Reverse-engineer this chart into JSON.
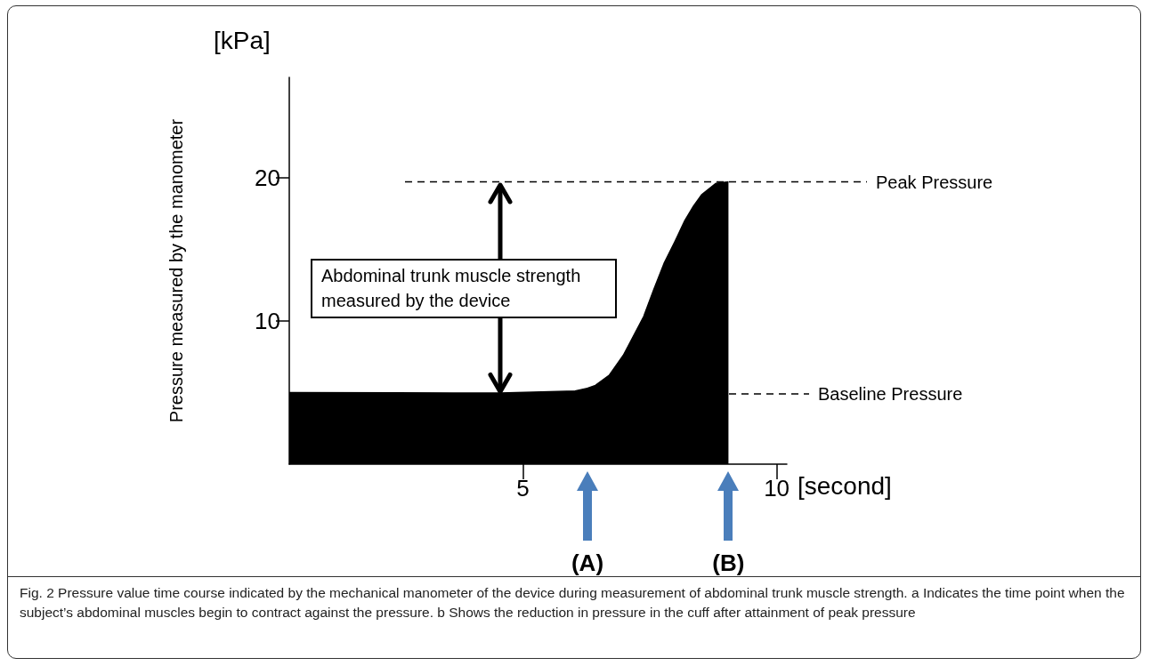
{
  "chart_data": {
    "type": "area",
    "xlabel": "[second]",
    "ylabel": "Pressure measured by the manometer",
    "xlim": [
      0.4,
      10.2
    ],
    "xticks": [
      5,
      10
    ],
    "ylim": [
      0,
      27
    ],
    "yticks": [
      10,
      20
    ],
    "grid": false,
    "marker": "none",
    "series": [
      {
        "color": "#000000",
        "x": [
          0.4,
          2.5,
          4.55,
          6.03,
          6.27,
          6.43,
          6.7,
          6.98,
          7.38,
          7.58,
          7.78,
          7.99,
          8.19,
          8.36,
          8.52,
          8.8,
          9.05
        ],
        "values": [
          5.0,
          4.98,
          4.96,
          5.1,
          5.3,
          5.5,
          6.2,
          7.6,
          10.3,
          12.2,
          14.0,
          15.5,
          17.0,
          18.0,
          18.8,
          19.6,
          19.7
        ]
      }
    ],
    "ref_lines": [
      {
        "axis": "y",
        "value": 19.7,
        "label": "Peak Pressure",
        "line_style": "dashed"
      },
      {
        "axis": "y",
        "value": 4.9,
        "label": "Baseline Pressure",
        "line_style": "dashed"
      }
    ],
    "annotations": [
      "[kPa]",
      "Abdominal trunk muscle strength measured by the device",
      "(A)",
      "(B)",
      "Fig. 2 Pressure value time course indicated by the mechanical manometer of the device during measurement of abdominal trunk muscle strength. a Indicates the time point when the subject’s abdominal muscles begin to contract against the pressure. b Shows the reduction in pressure in the cuff after attainment of peak pressure"
    ]
  }
}
